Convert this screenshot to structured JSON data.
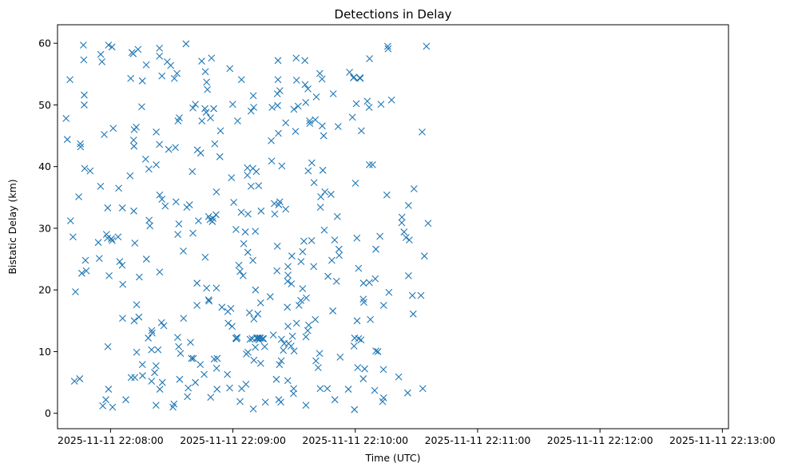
{
  "chart_data": {
    "type": "scatter",
    "title": "Detections in Delay",
    "xlabel": "Time (UTC)",
    "ylabel": "Bistatic Delay (km)",
    "marker": "x",
    "marker_color": "#1f77b4",
    "grid": false,
    "legend": "none",
    "x_unit": "seconds after 2025-11-11 22:08:00 UTC",
    "xlim": [
      -26,
      303
    ],
    "ylim": [
      -2.5,
      63
    ],
    "xticks": [
      {
        "value": 0,
        "label": "2025-11-11 22:08:00"
      },
      {
        "value": 60,
        "label": "2025-11-11 22:09:00"
      },
      {
        "value": 120,
        "label": "2025-11-11 22:10:00"
      },
      {
        "value": 180,
        "label": "2025-11-11 22:11:00"
      },
      {
        "value": 240,
        "label": "2025-11-11 22:12:00"
      },
      {
        "value": 300,
        "label": "2025-11-11 22:13:00"
      }
    ],
    "yticks": [
      {
        "value": 0,
        "label": "0"
      },
      {
        "value": 10,
        "label": "10"
      },
      {
        "value": 20,
        "label": "20"
      },
      {
        "value": 30,
        "label": "30"
      },
      {
        "value": 40,
        "label": "40"
      },
      {
        "value": 50,
        "label": "50"
      },
      {
        "value": 60,
        "label": "60"
      }
    ],
    "points": [
      [
        -21.8,
        47.8
      ],
      [
        -21.2,
        44.4
      ],
      [
        -19.9,
        54.1
      ],
      [
        -19.6,
        31.2
      ],
      [
        -18.4,
        28.6
      ],
      [
        -17.7,
        5.2
      ],
      [
        -17.2,
        19.7
      ],
      [
        -15.6,
        35.1
      ],
      [
        -15.1,
        5.6
      ],
      [
        -14.8,
        43.7
      ],
      [
        -14.7,
        43.2
      ],
      [
        -14.1,
        22.7
      ],
      [
        -13.3,
        59.7
      ],
      [
        -13.1,
        57.3
      ],
      [
        -12.9,
        51.6
      ],
      [
        -12.9,
        50.0
      ],
      [
        -12.7,
        39.7
      ],
      [
        -12.3,
        24.8
      ],
      [
        -11.9,
        23.1
      ],
      [
        -10.0,
        39.3
      ],
      [
        -6.0,
        27.7
      ],
      [
        -5.5,
        25.1
      ],
      [
        -4.9,
        36.8
      ],
      [
        -4.8,
        58.2
      ],
      [
        -4.2,
        57.0
      ],
      [
        -3.8,
        1.2
      ],
      [
        -3.1,
        45.2
      ],
      [
        -2.3,
        2.2
      ],
      [
        -2.0,
        29.0
      ],
      [
        -1.5,
        28.4
      ],
      [
        -1.4,
        33.3
      ],
      [
        -1.3,
        10.8
      ],
      [
        -1.0,
        59.7
      ],
      [
        -1.0,
        3.9
      ],
      [
        -0.7,
        22.3
      ],
      [
        0.4,
        28.3
      ],
      [
        0.7,
        59.4
      ],
      [
        0.8,
        28.0
      ],
      [
        1.0,
        1.0
      ],
      [
        1.3,
        46.2
      ],
      [
        3.7,
        28.6
      ],
      [
        4.0,
        36.5
      ],
      [
        4.5,
        24.6
      ],
      [
        5.7,
        24.0
      ],
      [
        5.8,
        33.3
      ],
      [
        5.9,
        15.4
      ],
      [
        6.0,
        20.9
      ],
      [
        7.5,
        2.2
      ],
      [
        9.6,
        38.5
      ],
      [
        9.9,
        54.3
      ],
      [
        10.1,
        5.8
      ],
      [
        10.5,
        58.5
      ],
      [
        11.1,
        58.3
      ],
      [
        11.3,
        44.3
      ],
      [
        11.4,
        32.8
      ],
      [
        11.5,
        43.3
      ],
      [
        11.6,
        46.0
      ],
      [
        11.6,
        15.0
      ],
      [
        11.9,
        27.6
      ],
      [
        11.9,
        5.8
      ],
      [
        12.6,
        46.4
      ],
      [
        12.8,
        17.6
      ],
      [
        12.8,
        9.9
      ],
      [
        13.5,
        59.0
      ],
      [
        13.9,
        15.6
      ],
      [
        14.1,
        22.1
      ],
      [
        15.3,
        49.7
      ],
      [
        15.6,
        53.9
      ],
      [
        15.6,
        7.9
      ],
      [
        15.7,
        6.1
      ],
      [
        17.2,
        41.2
      ],
      [
        17.5,
        56.5
      ],
      [
        17.6,
        25.0
      ],
      [
        18.5,
        12.2
      ],
      [
        18.8,
        39.6
      ],
      [
        18.9,
        31.3
      ],
      [
        19.3,
        30.4
      ],
      [
        20.1,
        5.2
      ],
      [
        20.1,
        10.3
      ],
      [
        20.2,
        13.4
      ],
      [
        20.4,
        13.0
      ],
      [
        21.6,
        6.6
      ],
      [
        22.3,
        1.3
      ],
      [
        22.3,
        7.7
      ],
      [
        22.4,
        40.3
      ],
      [
        22.4,
        45.6
      ],
      [
        23.3,
        10.3
      ],
      [
        24.0,
        59.2
      ],
      [
        24.0,
        57.9
      ],
      [
        24.0,
        43.6
      ],
      [
        24.1,
        35.4
      ],
      [
        24.1,
        22.9
      ],
      [
        24.2,
        3.9
      ],
      [
        25.0,
        14.7
      ],
      [
        25.2,
        54.7
      ],
      [
        25.2,
        34.7
      ],
      [
        25.4,
        5.0
      ],
      [
        26.1,
        14.2
      ],
      [
        26.8,
        33.6
      ],
      [
        27.8,
        57.0
      ],
      [
        28.5,
        42.8
      ],
      [
        29.5,
        56.4
      ],
      [
        30.6,
        1.0
      ],
      [
        31.1,
        1.5
      ],
      [
        31.3,
        54.3
      ],
      [
        31.8,
        43.1
      ],
      [
        32.1,
        34.3
      ],
      [
        32.6,
        55.1
      ],
      [
        32.9,
        12.3
      ],
      [
        33.0,
        29.0
      ],
      [
        33.1,
        47.4
      ],
      [
        33.4,
        10.8
      ],
      [
        33.5,
        30.7
      ],
      [
        33.7,
        47.9
      ],
      [
        33.9,
        5.5
      ],
      [
        34.3,
        9.7
      ],
      [
        35.7,
        26.3
      ],
      [
        35.8,
        15.4
      ],
      [
        37.0,
        59.9
      ],
      [
        37.4,
        33.4
      ],
      [
        37.7,
        2.7
      ],
      [
        38.1,
        4.1
      ],
      [
        38.7,
        33.8
      ],
      [
        39.2,
        11.5
      ],
      [
        39.7,
        8.9
      ],
      [
        40.1,
        39.2
      ],
      [
        40.4,
        49.5
      ],
      [
        40.4,
        29.2
      ],
      [
        40.6,
        8.9
      ],
      [
        41.6,
        50.1
      ],
      [
        41.6,
        5.0
      ],
      [
        42.4,
        17.5
      ],
      [
        42.4,
        21.1
      ],
      [
        42.6,
        42.7
      ],
      [
        43.1,
        31.2
      ],
      [
        44.0,
        7.9
      ],
      [
        44.2,
        42.2
      ],
      [
        44.7,
        57.1
      ],
      [
        44.8,
        47.4
      ],
      [
        45.9,
        6.3
      ],
      [
        46.3,
        49.4
      ],
      [
        46.4,
        25.3
      ],
      [
        46.5,
        55.4
      ],
      [
        46.9,
        48.8
      ],
      [
        47.1,
        20.3
      ],
      [
        47.1,
        53.7
      ],
      [
        47.5,
        52.5
      ],
      [
        48.1,
        31.9
      ],
      [
        48.1,
        18.4
      ],
      [
        48.3,
        18.2
      ],
      [
        48.8,
        31.4
      ],
      [
        49.0,
        47.9
      ],
      [
        49.1,
        2.6
      ],
      [
        49.5,
        57.6
      ],
      [
        49.9,
        31.1
      ],
      [
        50.2,
        31.6
      ],
      [
        50.6,
        49.4
      ],
      [
        50.8,
        8.8
      ],
      [
        51.1,
        43.7
      ],
      [
        51.7,
        32.2
      ],
      [
        51.9,
        35.9
      ],
      [
        51.9,
        20.3
      ],
      [
        52.0,
        7.3
      ],
      [
        52.2,
        3.9
      ],
      [
        52.3,
        8.9
      ],
      [
        53.6,
        41.6
      ],
      [
        53.9,
        45.8
      ],
      [
        54.6,
        17.2
      ],
      [
        57.3,
        6.3
      ],
      [
        57.5,
        16.5
      ],
      [
        57.7,
        14.6
      ],
      [
        58.4,
        4.1
      ],
      [
        58.5,
        55.9
      ],
      [
        59.0,
        17.0
      ],
      [
        59.3,
        38.2
      ],
      [
        59.6,
        14.1
      ],
      [
        59.9,
        50.1
      ],
      [
        60.4,
        34.2
      ],
      [
        61.5,
        29.8
      ],
      [
        61.5,
        12.2
      ],
      [
        61.6,
        12.1
      ],
      [
        61.8,
        12.1
      ],
      [
        62.1,
        12.3
      ],
      [
        62.3,
        47.4
      ],
      [
        62.9,
        24.0
      ],
      [
        63.5,
        1.9
      ],
      [
        63.5,
        23.0
      ],
      [
        64.1,
        32.6
      ],
      [
        64.2,
        54.1
      ],
      [
        64.3,
        4.0
      ],
      [
        65.0,
        22.3
      ],
      [
        65.3,
        27.5
      ],
      [
        66.1,
        29.4
      ],
      [
        66.4,
        4.7
      ],
      [
        66.6,
        9.6
      ],
      [
        67.1,
        39.8
      ],
      [
        67.1,
        38.6
      ],
      [
        67.3,
        26.1
      ],
      [
        67.4,
        9.9
      ],
      [
        67.4,
        32.3
      ],
      [
        68.1,
        16.3
      ],
      [
        68.4,
        12.0
      ],
      [
        68.9,
        49.0
      ],
      [
        68.9,
        36.8
      ],
      [
        69.5,
        12.1
      ],
      [
        69.8,
        24.8
      ],
      [
        69.8,
        39.7
      ],
      [
        70.0,
        0.7
      ],
      [
        70.0,
        51.5
      ],
      [
        70.2,
        49.6
      ],
      [
        70.3,
        8.6
      ],
      [
        70.3,
        15.3
      ],
      [
        71.0,
        10.7
      ],
      [
        71.0,
        29.5
      ],
      [
        71.1,
        20.0
      ],
      [
        71.5,
        39.2
      ],
      [
        71.6,
        12.2
      ],
      [
        71.8,
        12.2
      ],
      [
        72.2,
        16.1
      ],
      [
        72.3,
        12.2
      ],
      [
        72.6,
        36.9
      ],
      [
        72.8,
        11.9
      ],
      [
        73.1,
        12.2
      ],
      [
        73.4,
        12.2
      ],
      [
        73.6,
        8.1
      ],
      [
        73.6,
        17.9
      ],
      [
        73.8,
        32.8
      ],
      [
        74.5,
        12.1
      ],
      [
        75.0,
        12.1
      ],
      [
        75.6,
        10.8
      ],
      [
        75.9,
        1.8
      ],
      [
        78.3,
        18.9
      ],
      [
        78.8,
        44.2
      ],
      [
        79.0,
        40.9
      ],
      [
        79.2,
        49.6
      ],
      [
        79.8,
        12.7
      ],
      [
        80.3,
        34.0
      ],
      [
        80.5,
        32.3
      ],
      [
        81.3,
        5.5
      ],
      [
        81.6,
        23.1
      ],
      [
        81.8,
        51.8
      ],
      [
        81.8,
        27.1
      ],
      [
        81.9,
        49.9
      ],
      [
        82.1,
        57.2
      ],
      [
        82.1,
        54.1
      ],
      [
        82.3,
        45.4
      ],
      [
        82.5,
        33.8
      ],
      [
        82.5,
        2.2
      ],
      [
        82.8,
        7.9
      ],
      [
        83.0,
        34.3
      ],
      [
        83.0,
        52.3
      ],
      [
        83.5,
        1.8
      ],
      [
        83.7,
        8.5
      ],
      [
        83.8,
        12.0
      ],
      [
        84.0,
        40.1
      ],
      [
        84.7,
        10.2
      ],
      [
        85.2,
        11.3
      ],
      [
        85.9,
        47.1
      ],
      [
        85.9,
        33.1
      ],
      [
        86.7,
        17.2
      ],
      [
        86.8,
        21.4
      ],
      [
        86.9,
        5.3
      ],
      [
        87.0,
        14.1
      ],
      [
        87.0,
        22.4
      ],
      [
        87.0,
        23.8
      ],
      [
        87.3,
        11.3
      ],
      [
        88.5,
        10.9
      ],
      [
        88.7,
        21.0
      ],
      [
        88.9,
        25.5
      ],
      [
        89.2,
        12.5
      ],
      [
        89.7,
        3.2
      ],
      [
        89.8,
        4.0
      ],
      [
        89.9,
        49.3
      ],
      [
        90.0,
        10.1
      ],
      [
        90.7,
        45.7
      ],
      [
        91.0,
        57.6
      ],
      [
        91.2,
        14.6
      ],
      [
        91.2,
        54.0
      ],
      [
        92.0,
        49.8
      ],
      [
        92.4,
        17.5
      ],
      [
        93.3,
        18.3
      ],
      [
        93.4,
        24.6
      ],
      [
        94.2,
        26.2
      ],
      [
        94.2,
        20.2
      ],
      [
        94.8,
        27.9
      ],
      [
        95.3,
        57.2
      ],
      [
        95.4,
        53.3
      ],
      [
        95.7,
        50.4
      ],
      [
        95.8,
        12.4
      ],
      [
        95.8,
        1.3
      ],
      [
        96.0,
        18.7
      ],
      [
        96.7,
        13.4
      ],
      [
        96.8,
        52.6
      ],
      [
        96.9,
        39.3
      ],
      [
        97.2,
        14.3
      ],
      [
        97.6,
        47.4
      ],
      [
        97.7,
        47.0
      ],
      [
        98.6,
        28.0
      ],
      [
        98.7,
        40.6
      ],
      [
        99.6,
        23.8
      ],
      [
        99.8,
        37.4
      ],
      [
        100.4,
        15.2
      ],
      [
        100.4,
        47.6
      ],
      [
        100.7,
        8.5
      ],
      [
        100.9,
        51.3
      ],
      [
        101.8,
        7.4
      ],
      [
        102.5,
        9.7
      ],
      [
        102.6,
        55.1
      ],
      [
        102.8,
        4.0
      ],
      [
        102.9,
        33.4
      ],
      [
        103.1,
        35.1
      ],
      [
        103.7,
        54.2
      ],
      [
        103.8,
        46.6
      ],
      [
        104.1,
        39.4
      ],
      [
        104.5,
        45.0
      ],
      [
        104.8,
        29.7
      ],
      [
        105.1,
        35.9
      ],
      [
        106.3,
        4.0
      ],
      [
        106.6,
        22.2
      ],
      [
        108.1,
        35.5
      ],
      [
        108.5,
        24.8
      ],
      [
        109.0,
        16.6
      ],
      [
        109.2,
        51.8
      ],
      [
        109.9,
        28.1
      ],
      [
        110.0,
        2.2
      ],
      [
        110.8,
        21.4
      ],
      [
        111.2,
        31.9
      ],
      [
        111.6,
        46.5
      ],
      [
        112.0,
        26.6
      ],
      [
        112.1,
        25.6
      ],
      [
        112.6,
        9.1
      ],
      [
        116.6,
        3.9
      ],
      [
        117.2,
        55.3
      ],
      [
        118.6,
        48.0
      ],
      [
        119.1,
        54.4
      ],
      [
        119.4,
        54.5
      ],
      [
        119.4,
        10.9
      ],
      [
        119.6,
        0.6
      ],
      [
        119.7,
        12.2
      ],
      [
        120.1,
        37.3
      ],
      [
        120.5,
        50.2
      ],
      [
        120.8,
        28.4
      ],
      [
        120.9,
        15.0
      ],
      [
        121.2,
        7.4
      ],
      [
        121.6,
        12.1
      ],
      [
        121.6,
        23.5
      ],
      [
        122.3,
        54.4
      ],
      [
        122.4,
        54.3
      ],
      [
        122.8,
        11.9
      ],
      [
        123.0,
        45.8
      ],
      [
        123.9,
        18.5
      ],
      [
        123.9,
        5.6
      ],
      [
        124.0,
        21.1
      ],
      [
        124.2,
        18.0
      ],
      [
        124.6,
        7.2
      ],
      [
        125.9,
        50.6
      ],
      [
        126.8,
        49.6
      ],
      [
        126.9,
        21.2
      ],
      [
        126.9,
        40.3
      ],
      [
        127.0,
        57.5
      ],
      [
        127.4,
        15.2
      ],
      [
        128.5,
        40.3
      ],
      [
        129.5,
        3.7
      ],
      [
        129.8,
        21.8
      ],
      [
        130.1,
        26.6
      ],
      [
        130.1,
        10.1
      ],
      [
        131.1,
        10.0
      ],
      [
        132.1,
        28.7
      ],
      [
        132.6,
        50.1
      ],
      [
        133.4,
        1.9
      ],
      [
        133.8,
        7.1
      ],
      [
        133.9,
        2.5
      ],
      [
        133.9,
        17.5
      ],
      [
        135.5,
        35.4
      ],
      [
        135.9,
        59.5
      ],
      [
        136.1,
        59.1
      ],
      [
        136.5,
        19.6
      ],
      [
        137.8,
        50.8
      ],
      [
        141.3,
        5.9
      ],
      [
        142.8,
        30.9
      ],
      [
        142.9,
        31.8
      ],
      [
        143.9,
        29.4
      ],
      [
        144.9,
        28.5
      ],
      [
        145.7,
        3.3
      ],
      [
        146.1,
        33.7
      ],
      [
        146.1,
        22.3
      ],
      [
        146.5,
        28.1
      ],
      [
        148.0,
        19.1
      ],
      [
        148.4,
        16.1
      ],
      [
        148.8,
        36.4
      ],
      [
        152.2,
        19.1
      ],
      [
        152.8,
        45.6
      ],
      [
        153.1,
        4.0
      ],
      [
        153.9,
        25.5
      ],
      [
        154.9,
        59.5
      ],
      [
        155.7,
        30.8
      ]
    ]
  }
}
